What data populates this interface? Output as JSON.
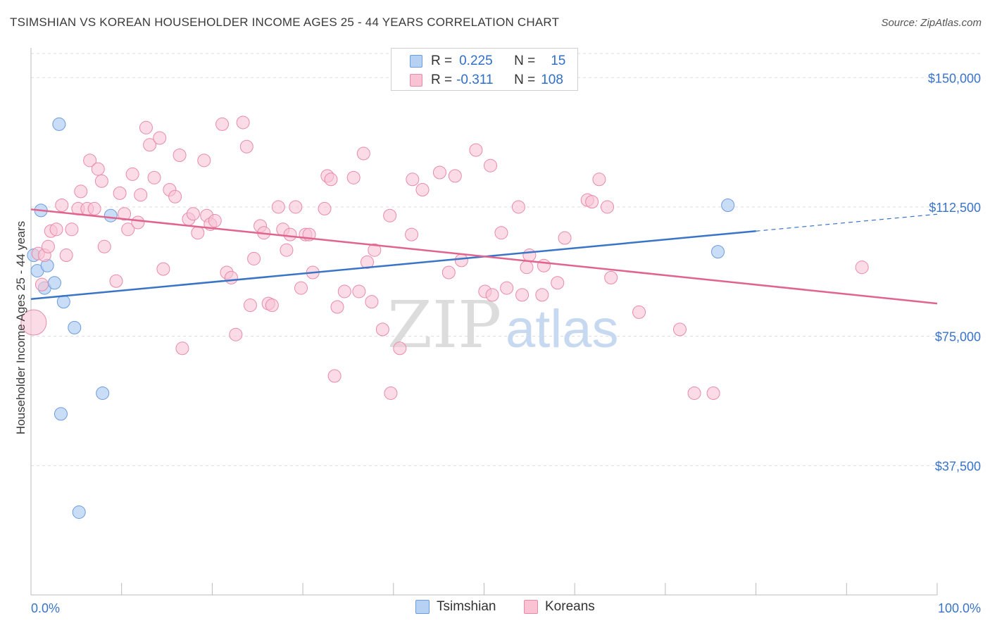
{
  "title": "TSIMSHIAN VS KOREAN HOUSEHOLDER INCOME AGES 25 - 44 YEARS CORRELATION CHART",
  "source": "Source: ZipAtlas.com",
  "watermark": {
    "zip": "ZIP",
    "atlas": "atlas"
  },
  "legend": {
    "r_label": "R =",
    "n_label": "N =",
    "series": [
      {
        "name": "Tsimshian",
        "r": "0.225",
        "n": "15",
        "fill": "#b7d1f3",
        "stroke": "#6b9be0"
      },
      {
        "name": "Koreans",
        "r": "-0.311",
        "n": "108",
        "fill": "#f9c3d3",
        "stroke": "#e88aa9"
      }
    ]
  },
  "chart_data": {
    "type": "scatter",
    "title": "TSIMSHIAN VS KOREAN HOUSEHOLDER INCOME AGES 25 - 44 YEARS CORRELATION CHART",
    "xlabel": "",
    "ylabel": "Householder Income Ages 25 - 44 years",
    "xlim": [
      0,
      100
    ],
    "ylim": [
      0,
      157000
    ],
    "x_tick_labels": [
      "0.0%",
      "100.0%"
    ],
    "y_ticks": [
      37500,
      75000,
      112500,
      150000
    ],
    "y_tick_labels": [
      "$37,500",
      "$75,000",
      "$112,500",
      "$150,000"
    ],
    "colors": {
      "tsimshian": "#3a74c7",
      "koreans": "#e0648f",
      "tsimshian_fill": "#b7d1f3",
      "koreans_fill": "#f9c3d3"
    },
    "series": [
      {
        "name": "Tsimshian",
        "points": [
          [
            0.3,
            98500
          ],
          [
            0.7,
            94000
          ],
          [
            1.1,
            111500
          ],
          [
            1.5,
            89000
          ],
          [
            1.8,
            95500
          ],
          [
            2.6,
            90500
          ],
          [
            3.1,
            136500
          ],
          [
            3.3,
            52500
          ],
          [
            3.6,
            85000
          ],
          [
            4.8,
            77500
          ],
          [
            5.3,
            24000
          ],
          [
            7.9,
            58500
          ],
          [
            8.8,
            110000
          ],
          [
            75.8,
            99500
          ],
          [
            76.9,
            113000
          ]
        ],
        "trend": {
          "x0": 0,
          "y0": 85800,
          "x1": 80,
          "y1": 105500,
          "x_dash_end": 100,
          "y_dash_end": 110400
        }
      },
      {
        "name": "Koreans",
        "points": [
          [
            0.3,
            79000
          ],
          [
            0.8,
            99000
          ],
          [
            1.2,
            90000
          ],
          [
            1.5,
            98500
          ],
          [
            1.9,
            101000
          ],
          [
            2.2,
            105500
          ],
          [
            2.8,
            106000
          ],
          [
            3.4,
            113000
          ],
          [
            3.9,
            98500
          ],
          [
            4.5,
            106000
          ],
          [
            5.2,
            112000
          ],
          [
            5.5,
            117000
          ],
          [
            6.2,
            112000
          ],
          [
            6.5,
            126000
          ],
          [
            7.0,
            112000
          ],
          [
            7.4,
            123500
          ],
          [
            7.8,
            120000
          ],
          [
            8.1,
            101000
          ],
          [
            9.4,
            91000
          ],
          [
            9.8,
            116500
          ],
          [
            10.3,
            110500
          ],
          [
            10.7,
            106000
          ],
          [
            11.2,
            122000
          ],
          [
            11.8,
            108000
          ],
          [
            12.1,
            116000
          ],
          [
            12.7,
            135500
          ],
          [
            13.1,
            130500
          ],
          [
            13.6,
            121000
          ],
          [
            14.2,
            132500
          ],
          [
            14.6,
            94500
          ],
          [
            15.3,
            117500
          ],
          [
            15.9,
            115500
          ],
          [
            16.4,
            127500
          ],
          [
            16.7,
            71500
          ],
          [
            17.4,
            109000
          ],
          [
            17.9,
            110500
          ],
          [
            18.4,
            105000
          ],
          [
            19.1,
            126000
          ],
          [
            19.4,
            110000
          ],
          [
            19.8,
            107500
          ],
          [
            20.3,
            108500
          ],
          [
            21.1,
            136500
          ],
          [
            21.6,
            93500
          ],
          [
            22.1,
            92000
          ],
          [
            22.6,
            75500
          ],
          [
            23.4,
            137000
          ],
          [
            23.8,
            130000
          ],
          [
            24.2,
            84000
          ],
          [
            24.6,
            97500
          ],
          [
            25.3,
            107000
          ],
          [
            25.7,
            105000
          ],
          [
            26.2,
            84500
          ],
          [
            26.6,
            84000
          ],
          [
            27.3,
            112500
          ],
          [
            27.8,
            106000
          ],
          [
            28.2,
            100000
          ],
          [
            28.6,
            104500
          ],
          [
            29.2,
            112500
          ],
          [
            29.8,
            89000
          ],
          [
            30.3,
            104500
          ],
          [
            30.7,
            104500
          ],
          [
            31.1,
            93500
          ],
          [
            32.4,
            112000
          ],
          [
            32.7,
            121500
          ],
          [
            33.1,
            120500
          ],
          [
            33.5,
            63500
          ],
          [
            33.8,
            83500
          ],
          [
            34.6,
            88000
          ],
          [
            35.6,
            121000
          ],
          [
            36.2,
            88000
          ],
          [
            36.7,
            128000
          ],
          [
            37.1,
            96500
          ],
          [
            37.6,
            85000
          ],
          [
            37.9,
            100000
          ],
          [
            38.8,
            77000
          ],
          [
            39.6,
            110000
          ],
          [
            39.7,
            58500
          ],
          [
            40.7,
            71500
          ],
          [
            42.0,
            104500
          ],
          [
            42.1,
            120500
          ],
          [
            43.2,
            117500
          ],
          [
            45.1,
            122500
          ],
          [
            46.1,
            93500
          ],
          [
            46.8,
            121500
          ],
          [
            47.5,
            97000
          ],
          [
            49.1,
            129000
          ],
          [
            50.1,
            88000
          ],
          [
            50.7,
            124500
          ],
          [
            50.9,
            87000
          ],
          [
            51.9,
            105000
          ],
          [
            52.5,
            89000
          ],
          [
            53.8,
            112500
          ],
          [
            54.2,
            87000
          ],
          [
            54.7,
            95000
          ],
          [
            55.0,
            98500
          ],
          [
            56.4,
            87000
          ],
          [
            56.6,
            95500
          ],
          [
            58.1,
            90500
          ],
          [
            58.9,
            103500
          ],
          [
            61.4,
            114500
          ],
          [
            61.9,
            114000
          ],
          [
            62.7,
            120500
          ],
          [
            63.6,
            112500
          ],
          [
            64.0,
            92000
          ],
          [
            67.1,
            82000
          ],
          [
            71.6,
            77000
          ],
          [
            73.2,
            58500
          ],
          [
            75.3,
            58500
          ],
          [
            91.7,
            95000
          ]
        ],
        "trend": {
          "x0": 0,
          "y0": 111800,
          "x1": 100,
          "y1": 84500
        }
      }
    ]
  }
}
